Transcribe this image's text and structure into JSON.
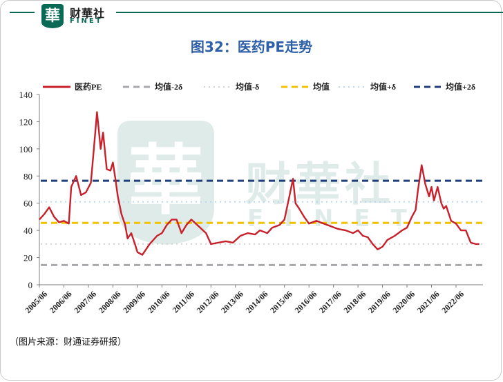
{
  "brand": {
    "logo_char": "華",
    "name_cn": "财華社",
    "name_en": "FINET"
  },
  "title": "图32：医药PE走势",
  "source": "（图片来源：财通证券研报）",
  "colors": {
    "pe": "#c8202a",
    "minus2": "#a8a9ad",
    "minus1": "#d3d3d3",
    "mean": "#f2c100",
    "plus1": "#b9d6f2",
    "plus2": "#1f3f7a",
    "brand": "#0b6a55",
    "title": "#2e5fa8"
  },
  "chart_data": {
    "type": "line",
    "title": "",
    "xlabel": "",
    "ylabel": "",
    "ylim": [
      0,
      140
    ],
    "yticks": [
      0,
      20,
      40,
      60,
      80,
      100,
      120,
      140
    ],
    "xticks": [
      "2005/06",
      "2006/06",
      "2007/06",
      "2008/06",
      "2009/06",
      "2010/06",
      "2011/06",
      "2012/06",
      "2013/06",
      "2014/06",
      "2015/06",
      "2016/06",
      "2017/06",
      "2018/06",
      "2019/06",
      "2020/06",
      "2021/06",
      "2022/06"
    ],
    "legend_position": "top",
    "grid": false,
    "series": [
      {
        "name": "医药PE",
        "style": "solid",
        "x": [
          2005.0,
          2005.2,
          2005.4,
          2005.6,
          2005.8,
          2006.0,
          2006.2,
          2006.3,
          2006.5,
          2006.7,
          2006.9,
          2007.1,
          2007.2,
          2007.35,
          2007.5,
          2007.6,
          2007.75,
          2007.9,
          2008.0,
          2008.1,
          2008.2,
          2008.35,
          2008.5,
          2008.6,
          2008.75,
          2008.9,
          2009.0,
          2009.2,
          2009.5,
          2009.8,
          2010.0,
          2010.2,
          2010.4,
          2010.6,
          2010.8,
          2011.0,
          2011.2,
          2011.5,
          2011.8,
          2012.0,
          2012.3,
          2012.6,
          2012.9,
          2013.2,
          2013.5,
          2013.8,
          2014.0,
          2014.3,
          2014.5,
          2014.8,
          2015.0,
          2015.2,
          2015.35,
          2015.45,
          2015.6,
          2015.8,
          2016.0,
          2016.3,
          2016.6,
          2016.9,
          2017.2,
          2017.5,
          2017.8,
          2018.0,
          2018.2,
          2018.4,
          2018.6,
          2018.8,
          2019.0,
          2019.2,
          2019.5,
          2019.8,
          2020.0,
          2020.2,
          2020.35,
          2020.45,
          2020.6,
          2020.75,
          2020.9,
          2021.0,
          2021.1,
          2021.25,
          2021.4,
          2021.5,
          2021.6,
          2021.8,
          2022.0,
          2022.2,
          2022.4,
          2022.6,
          2022.8,
          2022.95
        ],
        "values": [
          48,
          52,
          57,
          50,
          46,
          47,
          45,
          72,
          80,
          66,
          68,
          75,
          95,
          127,
          100,
          112,
          85,
          84,
          90,
          78,
          65,
          52,
          44,
          34,
          38,
          30,
          24,
          22,
          30,
          36,
          38,
          44,
          48,
          48,
          38,
          44,
          48,
          43,
          38,
          30,
          31,
          32,
          31,
          36,
          38,
          37,
          40,
          38,
          42,
          44,
          48,
          65,
          78,
          60,
          56,
          50,
          45,
          47,
          45,
          43,
          41,
          40,
          38,
          40,
          36,
          35,
          30,
          26,
          28,
          33,
          36,
          40,
          42,
          50,
          55,
          70,
          88,
          74,
          65,
          72,
          62,
          72,
          60,
          56,
          58,
          47,
          45,
          40,
          40,
          31,
          30,
          30
        ]
      },
      {
        "name": "均值-2δ",
        "style": "dashed",
        "value": 14.5
      },
      {
        "name": "均值-δ",
        "style": "dotted",
        "value": 30
      },
      {
        "name": "均值",
        "style": "dashed",
        "value": 45.5
      },
      {
        "name": "均值+δ",
        "style": "dotted",
        "value": 61
      },
      {
        "name": "均值+2δ",
        "style": "dashed",
        "value": 76.5
      }
    ]
  }
}
